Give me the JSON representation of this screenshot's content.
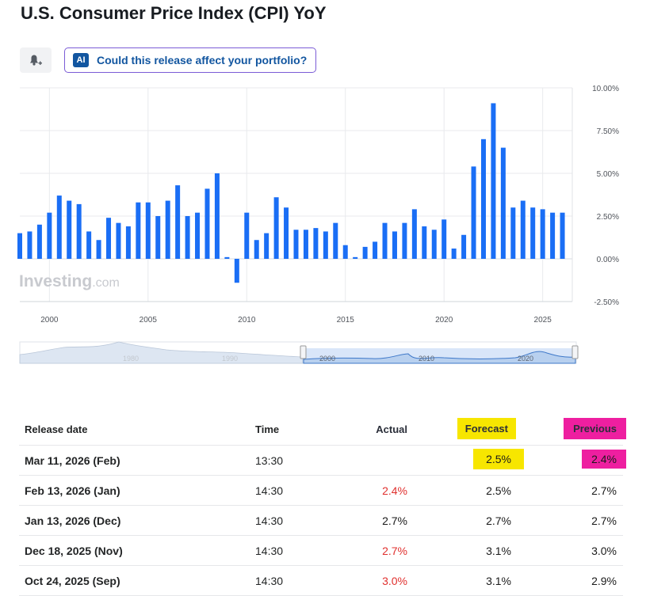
{
  "page_title": "U.S. Consumer Price Index (CPI) YoY",
  "ai_prompt": "Could this release affect your portfolio?",
  "ai_badge": "AI",
  "watermark": "Investing",
  "watermark_suffix": ".com",
  "colors": {
    "bar": "#1a6ef5",
    "negative": "#e0302e",
    "forecast_highlight": "#f7e600",
    "previous_highlight": "#ee1fa0"
  },
  "chart_data": {
    "type": "bar",
    "title": "U.S. Consumer Price Index (CPI) YoY",
    "x_ticks": [
      "2000",
      "2005",
      "2010",
      "2015",
      "2020",
      "2025"
    ],
    "y_tick_labels": [
      "10.00%",
      "7.50%",
      "5.00%",
      "2.50%",
      "0.00%",
      "-2.50%"
    ],
    "y_ticks": [
      10,
      7.5,
      5,
      2.5,
      0,
      -2.5
    ],
    "ylim": [
      -2.5,
      10
    ],
    "xlim": [
      1998.5,
      2026.5
    ],
    "series": [
      {
        "name": "CPI YoY",
        "x": [
          1998.5,
          1999.0,
          1999.5,
          2000.0,
          2000.5,
          2001.0,
          2001.5,
          2002.0,
          2002.5,
          2003.0,
          2003.5,
          2004.0,
          2004.5,
          2005.0,
          2005.5,
          2006.0,
          2006.5,
          2007.0,
          2007.5,
          2008.0,
          2008.5,
          2009.0,
          2009.5,
          2010.0,
          2010.5,
          2011.0,
          2011.5,
          2012.0,
          2012.5,
          2013.0,
          2013.5,
          2014.0,
          2014.5,
          2015.0,
          2015.5,
          2016.0,
          2016.5,
          2017.0,
          2017.5,
          2018.0,
          2018.5,
          2019.0,
          2019.5,
          2020.0,
          2020.5,
          2021.0,
          2021.5,
          2022.0,
          2022.5,
          2023.0,
          2023.5,
          2024.0,
          2024.5,
          2025.0,
          2025.5,
          2026.0
        ],
        "values": [
          1.5,
          1.6,
          2.0,
          2.7,
          3.7,
          3.4,
          3.2,
          1.6,
          1.1,
          2.4,
          2.1,
          1.9,
          3.3,
          3.3,
          2.5,
          3.4,
          4.3,
          2.5,
          2.7,
          4.1,
          5.0,
          0.1,
          -1.4,
          2.7,
          1.1,
          1.5,
          3.6,
          3.0,
          1.7,
          1.7,
          1.8,
          1.6,
          2.1,
          0.8,
          0.1,
          0.7,
          1.0,
          2.1,
          1.6,
          2.1,
          2.9,
          1.9,
          1.7,
          2.3,
          0.6,
          1.4,
          5.4,
          7.0,
          9.1,
          6.5,
          3.0,
          3.4,
          3.0,
          2.9,
          2.7,
          2.7
        ]
      }
    ],
    "navigator_labels": [
      "1980",
      "1990",
      "2000",
      "2010",
      "2020"
    ]
  },
  "table": {
    "headers": {
      "release_date": "Release date",
      "time": "Time",
      "actual": "Actual",
      "forecast": "Forecast",
      "previous": "Previous"
    },
    "rows": [
      {
        "date": "Mar 11, 2026 (Feb)",
        "time": "13:30",
        "actual": "",
        "forecast": "2.5%",
        "previous": "2.4%"
      },
      {
        "date": "Feb 13, 2026 (Jan)",
        "time": "14:30",
        "actual": "2.4%",
        "forecast": "2.5%",
        "previous": "2.7%"
      },
      {
        "date": "Jan 13, 2026 (Dec)",
        "time": "14:30",
        "actual": "2.7%",
        "forecast": "2.7%",
        "previous": "2.7%"
      },
      {
        "date": "Dec 18, 2025 (Nov)",
        "time": "14:30",
        "actual": "2.7%",
        "forecast": "3.1%",
        "previous": "3.0%"
      },
      {
        "date": "Oct 24, 2025 (Sep)",
        "time": "14:30",
        "actual": "3.0%",
        "forecast": "3.1%",
        "previous": "2.9%"
      }
    ]
  }
}
